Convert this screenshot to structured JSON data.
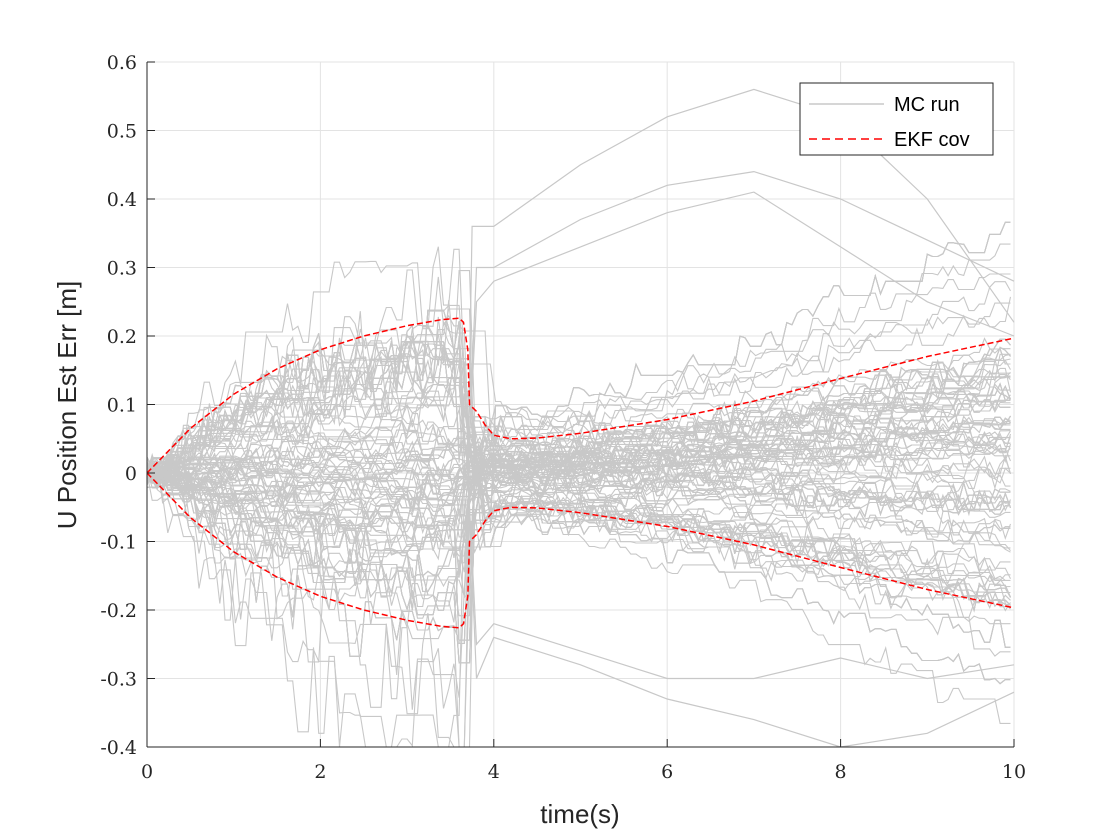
{
  "chart_data": {
    "type": "line",
    "title": "",
    "xlabel": "time(s)",
    "ylabel": "U Position Est Err [m]",
    "xlim": [
      0,
      10
    ],
    "ylim": [
      -0.4,
      0.6
    ],
    "x_ticks": [
      "0",
      "2",
      "4",
      "6",
      "8",
      "10"
    ],
    "y_ticks": [
      "-0.4",
      "-0.3",
      "-0.2",
      "-0.1",
      "0",
      "0.1",
      "0.2",
      "0.3",
      "0.4",
      "0.5",
      "0.6"
    ],
    "grid": true,
    "legend": {
      "position": "top-right",
      "entries": [
        "MC run",
        "EKF cov"
      ]
    },
    "colors": {
      "mc_run": "#c8c8c8",
      "ekf_cov": "#ff0000",
      "grid": "#e3e3e3",
      "axis": "#262626"
    },
    "series": [
      {
        "name": "EKF cov",
        "style": "dashed",
        "x": [
          0,
          0.5,
          1.0,
          1.5,
          2.0,
          2.5,
          3.0,
          3.4,
          3.6,
          3.65,
          3.7,
          3.72,
          3.8,
          3.9,
          4.0,
          4.2,
          4.5,
          5.0,
          6.0,
          7.0,
          8.0,
          9.0,
          10.0
        ],
        "upper": [
          0,
          0.065,
          0.115,
          0.152,
          0.18,
          0.2,
          0.215,
          0.224,
          0.226,
          0.22,
          0.18,
          0.1,
          0.09,
          0.07,
          0.055,
          0.05,
          0.051,
          0.058,
          0.078,
          0.105,
          0.138,
          0.17,
          0.197
        ],
        "lower": [
          0,
          -0.065,
          -0.115,
          -0.152,
          -0.18,
          -0.2,
          -0.215,
          -0.224,
          -0.226,
          -0.22,
          -0.18,
          -0.1,
          -0.09,
          -0.07,
          -0.055,
          -0.05,
          -0.051,
          -0.058,
          -0.078,
          -0.105,
          -0.138,
          -0.17,
          -0.197
        ]
      },
      {
        "name": "MC run",
        "style": "solid",
        "note_count": 150,
        "outlier_runs": [
          {
            "x": [
              3.7,
              3.75,
              4.0,
              5.0,
              6.0,
              7.0,
              8.0,
              9.0,
              10.0
            ],
            "y": [
              0.0,
              0.36,
              0.36,
              0.45,
              0.52,
              0.56,
              0.52,
              0.4,
              0.22
            ]
          },
          {
            "x": [
              3.7,
              3.8,
              4.0,
              5.0,
              6.0,
              7.0,
              8.0,
              9.0,
              10.0
            ],
            "y": [
              0.0,
              0.3,
              0.3,
              0.37,
              0.42,
              0.44,
              0.4,
              0.34,
              0.28
            ]
          },
          {
            "x": [
              3.7,
              3.8,
              4.0,
              5.0,
              6.0,
              7.0,
              8.0,
              9.0,
              10.0
            ],
            "y": [
              0.0,
              0.25,
              0.28,
              0.33,
              0.38,
              0.41,
              0.33,
              0.25,
              0.2
            ]
          },
          {
            "x": [
              3.7,
              3.8,
              4.0,
              5.0,
              6.0,
              7.0,
              8.0,
              9.0,
              10.0
            ],
            "y": [
              0.0,
              -0.3,
              -0.24,
              -0.28,
              -0.33,
              -0.36,
              -0.4,
              -0.38,
              -0.32
            ]
          },
          {
            "x": [
              3.7,
              3.8,
              4.0,
              5.0,
              6.0,
              7.0,
              8.0,
              9.0,
              10.0
            ],
            "y": [
              0.0,
              -0.25,
              -0.22,
              -0.26,
              -0.3,
              -0.3,
              -0.27,
              -0.3,
              -0.28
            ]
          }
        ]
      }
    ]
  }
}
